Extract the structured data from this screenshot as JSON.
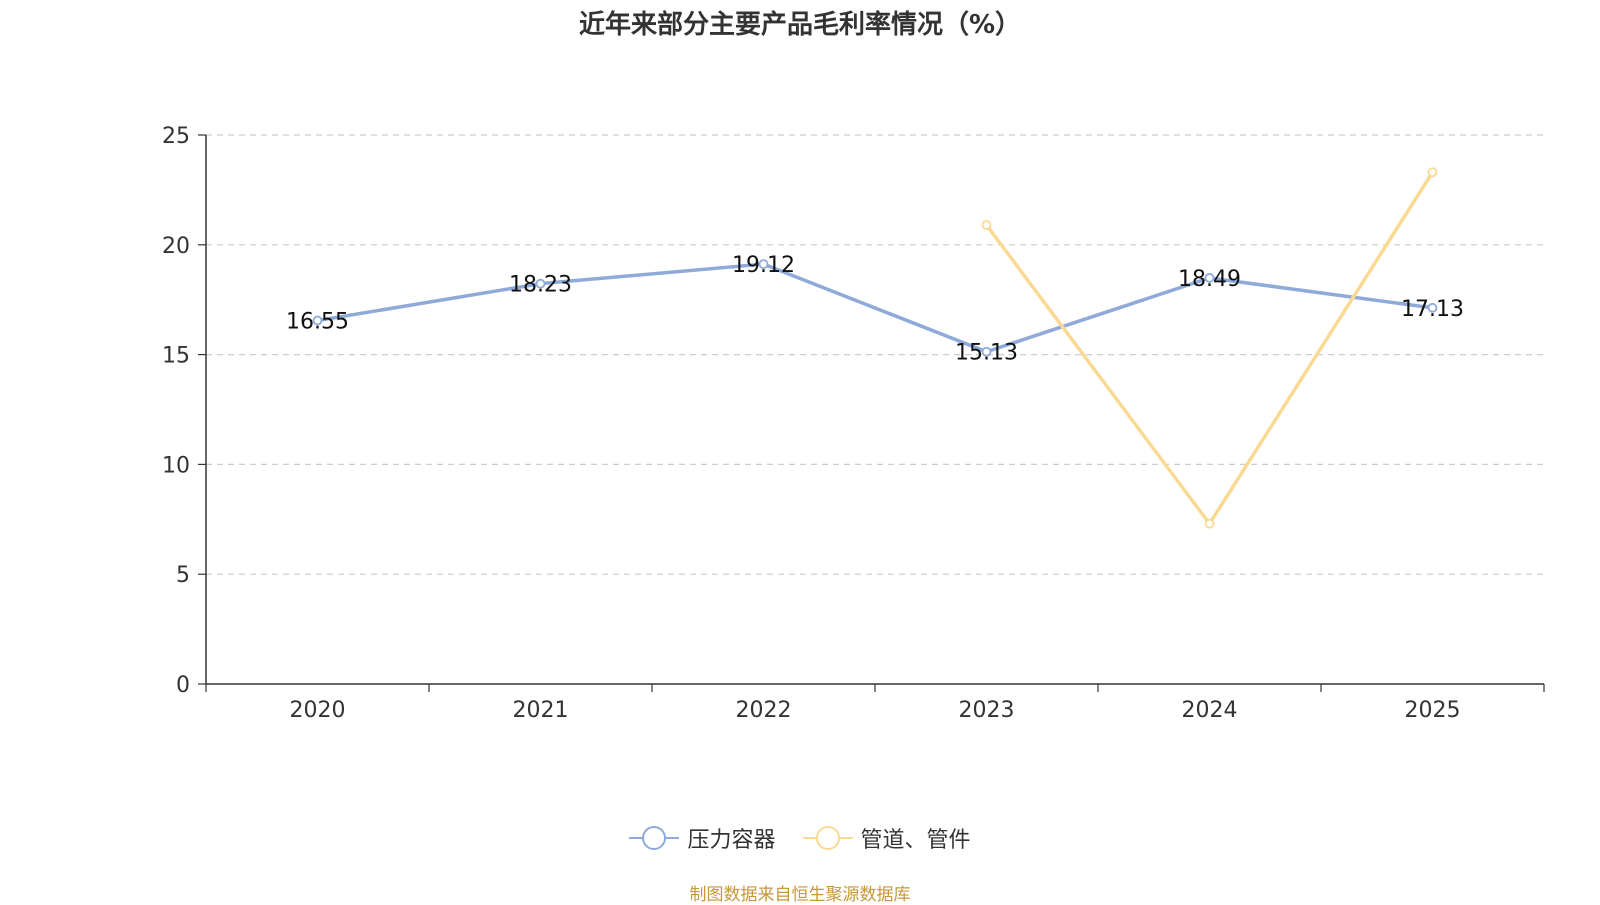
{
  "chart_data": {
    "type": "line",
    "title": "近年来部分主要产品毛利率情况（%）",
    "categories": [
      "2020",
      "2021",
      "2022",
      "2023",
      "2024",
      "2025"
    ],
    "ylim": [
      0,
      25
    ],
    "yticks": [
      0,
      5,
      10,
      15,
      20,
      25
    ],
    "ytick_labels": [
      "0",
      "5",
      "10",
      "15",
      "20",
      "25"
    ],
    "grid": true,
    "legend_position": "bottom",
    "series": [
      {
        "name": "压力容器",
        "color": "#8eaad8",
        "values": [
          16.55,
          18.23,
          19.12,
          15.13,
          18.49,
          17.13
        ],
        "labels": [
          "16.55",
          "18.23",
          "19.12",
          "15.13",
          "18.49",
          "17.13"
        ]
      },
      {
        "name": "管道、管件",
        "color": "#fad993",
        "values": [
          null,
          null,
          null,
          20.9,
          7.3,
          23.3
        ],
        "labels": []
      }
    ]
  },
  "source": "制图数据来自恒生聚源数据库"
}
